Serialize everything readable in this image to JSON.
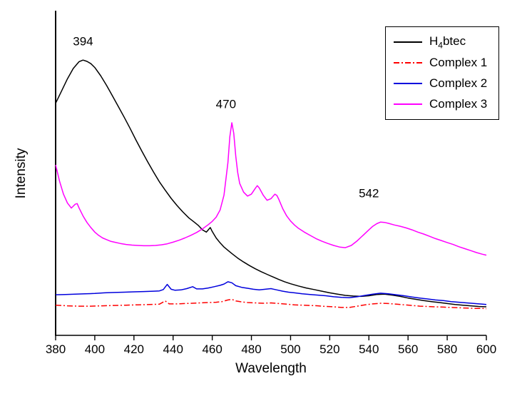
{
  "figure": {
    "background": "#ffffff"
  },
  "chart_data": {
    "type": "line",
    "title": "",
    "xlabel": "Wavelength",
    "ylabel": "Intensity",
    "xlim": [
      380,
      600
    ],
    "ylim": [
      0,
      1
    ],
    "x_ticks": [
      380,
      400,
      420,
      440,
      460,
      480,
      500,
      520,
      540,
      560,
      580,
      600
    ],
    "y_ticks": [],
    "grid": false,
    "legend": {
      "position": "top-right",
      "entries": [
        {
          "label": "H4btec",
          "label_parts": [
            {
              "t": "H"
            },
            {
              "t": "4",
              "sub": true
            },
            {
              "t": "btec"
            }
          ],
          "color": "#000000",
          "dash": "solid",
          "series_id": "h4btec"
        },
        {
          "label": "Complex 1",
          "label_parts": [
            {
              "t": "Complex 1"
            }
          ],
          "color": "#ff0000",
          "dash": "dashdot",
          "series_id": "complex1"
        },
        {
          "label": "Complex 2",
          "label_parts": [
            {
              "t": "Complex 2"
            }
          ],
          "color": "#0000dd",
          "dash": "solid",
          "series_id": "complex2"
        },
        {
          "label": "Complex 3",
          "label_parts": [
            {
              "t": "Complex 3"
            }
          ],
          "color": "#ff00ff",
          "dash": "solid",
          "series_id": "complex3"
        }
      ]
    },
    "annotations": [
      {
        "text": "394",
        "x": 394,
        "y": 0.893
      },
      {
        "text": "470",
        "x": 467,
        "y": 0.7
      },
      {
        "text": "542",
        "x": 540,
        "y": 0.425
      }
    ],
    "series": [
      {
        "id": "h4btec",
        "name": "H4btec",
        "color": "#000000",
        "dash": "solid",
        "peak_label": "394",
        "points": [
          [
            380,
            0.715
          ],
          [
            383,
            0.752
          ],
          [
            386,
            0.79
          ],
          [
            389,
            0.822
          ],
          [
            392,
            0.843
          ],
          [
            394,
            0.848
          ],
          [
            396,
            0.844
          ],
          [
            398,
            0.837
          ],
          [
            400,
            0.825
          ],
          [
            403,
            0.8
          ],
          [
            406,
            0.77
          ],
          [
            409,
            0.738
          ],
          [
            412,
            0.705
          ],
          [
            415,
            0.672
          ],
          [
            418,
            0.638
          ],
          [
            421,
            0.602
          ],
          [
            424,
            0.568
          ],
          [
            427,
            0.535
          ],
          [
            430,
            0.503
          ],
          [
            433,
            0.473
          ],
          [
            436,
            0.447
          ],
          [
            439,
            0.422
          ],
          [
            442,
            0.4
          ],
          [
            445,
            0.38
          ],
          [
            448,
            0.362
          ],
          [
            451,
            0.348
          ],
          [
            453,
            0.338
          ],
          [
            455,
            0.325
          ],
          [
            457,
            0.318
          ],
          [
            459,
            0.332
          ],
          [
            460,
            0.32
          ],
          [
            462,
            0.3
          ],
          [
            464,
            0.285
          ],
          [
            466,
            0.272
          ],
          [
            468,
            0.262
          ],
          [
            470,
            0.252
          ],
          [
            473,
            0.238
          ],
          [
            476,
            0.226
          ],
          [
            479,
            0.215
          ],
          [
            482,
            0.205
          ],
          [
            485,
            0.196
          ],
          [
            488,
            0.188
          ],
          [
            491,
            0.18
          ],
          [
            494,
            0.172
          ],
          [
            497,
            0.165
          ],
          [
            500,
            0.159
          ],
          [
            504,
            0.152
          ],
          [
            508,
            0.146
          ],
          [
            512,
            0.141
          ],
          [
            516,
            0.136
          ],
          [
            520,
            0.131
          ],
          [
            524,
            0.127
          ],
          [
            528,
            0.123
          ],
          [
            532,
            0.121
          ],
          [
            536,
            0.12
          ],
          [
            540,
            0.122
          ],
          [
            544,
            0.126
          ],
          [
            548,
            0.127
          ],
          [
            552,
            0.124
          ],
          [
            556,
            0.12
          ],
          [
            560,
            0.115
          ],
          [
            564,
            0.111
          ],
          [
            568,
            0.107
          ],
          [
            572,
            0.104
          ],
          [
            576,
            0.101
          ],
          [
            580,
            0.098
          ],
          [
            584,
            0.095
          ],
          [
            588,
            0.093
          ],
          [
            592,
            0.091
          ],
          [
            596,
            0.089
          ],
          [
            600,
            0.088
          ]
        ]
      },
      {
        "id": "complex1",
        "name": "Complex 1",
        "color": "#ff0000",
        "dash": "dashdot",
        "peak_label": "",
        "points": [
          [
            380,
            0.093
          ],
          [
            386,
            0.091
          ],
          [
            392,
            0.09
          ],
          [
            398,
            0.09
          ],
          [
            404,
            0.091
          ],
          [
            410,
            0.092
          ],
          [
            416,
            0.093
          ],
          [
            422,
            0.094
          ],
          [
            428,
            0.095
          ],
          [
            433,
            0.096
          ],
          [
            436,
            0.106
          ],
          [
            438,
            0.097
          ],
          [
            442,
            0.097
          ],
          [
            446,
            0.098
          ],
          [
            450,
            0.099
          ],
          [
            454,
            0.1
          ],
          [
            458,
            0.101
          ],
          [
            462,
            0.102
          ],
          [
            465,
            0.104
          ],
          [
            468,
            0.109
          ],
          [
            470,
            0.111
          ],
          [
            472,
            0.106
          ],
          [
            475,
            0.103
          ],
          [
            478,
            0.101
          ],
          [
            482,
            0.1
          ],
          [
            486,
            0.099
          ],
          [
            490,
            0.1
          ],
          [
            494,
            0.098
          ],
          [
            498,
            0.096
          ],
          [
            502,
            0.094
          ],
          [
            506,
            0.093
          ],
          [
            510,
            0.092
          ],
          [
            514,
            0.091
          ],
          [
            518,
            0.089
          ],
          [
            522,
            0.088
          ],
          [
            526,
            0.086
          ],
          [
            530,
            0.086
          ],
          [
            534,
            0.09
          ],
          [
            538,
            0.094
          ],
          [
            542,
            0.097
          ],
          [
            546,
            0.099
          ],
          [
            550,
            0.098
          ],
          [
            554,
            0.096
          ],
          [
            558,
            0.094
          ],
          [
            562,
            0.092
          ],
          [
            566,
            0.09
          ],
          [
            570,
            0.089
          ],
          [
            574,
            0.088
          ],
          [
            578,
            0.087
          ],
          [
            582,
            0.086
          ],
          [
            586,
            0.085
          ],
          [
            590,
            0.084
          ],
          [
            594,
            0.083
          ],
          [
            598,
            0.083
          ],
          [
            600,
            0.082
          ]
        ]
      },
      {
        "id": "complex2",
        "name": "Complex 2",
        "color": "#0000dd",
        "dash": "solid",
        "peak_label": "",
        "points": [
          [
            380,
            0.125
          ],
          [
            385,
            0.126
          ],
          [
            390,
            0.127
          ],
          [
            395,
            0.128
          ],
          [
            400,
            0.129
          ],
          [
            405,
            0.131
          ],
          [
            410,
            0.132
          ],
          [
            415,
            0.133
          ],
          [
            420,
            0.134
          ],
          [
            425,
            0.135
          ],
          [
            430,
            0.136
          ],
          [
            433,
            0.137
          ],
          [
            435,
            0.141
          ],
          [
            437,
            0.157
          ],
          [
            439,
            0.142
          ],
          [
            441,
            0.139
          ],
          [
            444,
            0.14
          ],
          [
            447,
            0.144
          ],
          [
            450,
            0.15
          ],
          [
            452,
            0.143
          ],
          [
            455,
            0.143
          ],
          [
            458,
            0.146
          ],
          [
            461,
            0.15
          ],
          [
            464,
            0.154
          ],
          [
            466,
            0.158
          ],
          [
            468,
            0.165
          ],
          [
            470,
            0.162
          ],
          [
            472,
            0.153
          ],
          [
            475,
            0.148
          ],
          [
            478,
            0.145
          ],
          [
            481,
            0.142
          ],
          [
            484,
            0.14
          ],
          [
            487,
            0.142
          ],
          [
            490,
            0.144
          ],
          [
            493,
            0.14
          ],
          [
            496,
            0.136
          ],
          [
            499,
            0.133
          ],
          [
            502,
            0.131
          ],
          [
            506,
            0.128
          ],
          [
            510,
            0.126
          ],
          [
            514,
            0.124
          ],
          [
            518,
            0.122
          ],
          [
            522,
            0.119
          ],
          [
            526,
            0.117
          ],
          [
            530,
            0.116
          ],
          [
            534,
            0.119
          ],
          [
            538,
            0.123
          ],
          [
            542,
            0.127
          ],
          [
            546,
            0.13
          ],
          [
            550,
            0.128
          ],
          [
            554,
            0.125
          ],
          [
            558,
            0.122
          ],
          [
            562,
            0.118
          ],
          [
            566,
            0.115
          ],
          [
            570,
            0.112
          ],
          [
            574,
            0.109
          ],
          [
            578,
            0.107
          ],
          [
            582,
            0.104
          ],
          [
            586,
            0.102
          ],
          [
            590,
            0.1
          ],
          [
            594,
            0.098
          ],
          [
            598,
            0.096
          ],
          [
            600,
            0.095
          ]
        ]
      },
      {
        "id": "complex3",
        "name": "Complex 3",
        "color": "#ff00ff",
        "dash": "solid",
        "peak_label": "470 / 542",
        "points": [
          [
            380,
            0.525
          ],
          [
            382,
            0.475
          ],
          [
            384,
            0.435
          ],
          [
            386,
            0.408
          ],
          [
            388,
            0.392
          ],
          [
            390,
            0.404
          ],
          [
            391,
            0.406
          ],
          [
            392,
            0.392
          ],
          [
            394,
            0.368
          ],
          [
            396,
            0.348
          ],
          [
            398,
            0.332
          ],
          [
            400,
            0.318
          ],
          [
            402,
            0.308
          ],
          [
            404,
            0.3
          ],
          [
            406,
            0.295
          ],
          [
            408,
            0.29
          ],
          [
            410,
            0.287
          ],
          [
            413,
            0.283
          ],
          [
            416,
            0.28
          ],
          [
            419,
            0.278
          ],
          [
            422,
            0.277
          ],
          [
            425,
            0.276
          ],
          [
            428,
            0.276
          ],
          [
            431,
            0.277
          ],
          [
            434,
            0.279
          ],
          [
            437,
            0.282
          ],
          [
            440,
            0.287
          ],
          [
            443,
            0.293
          ],
          [
            446,
            0.3
          ],
          [
            449,
            0.308
          ],
          [
            452,
            0.317
          ],
          [
            455,
            0.328
          ],
          [
            458,
            0.341
          ],
          [
            460,
            0.351
          ],
          [
            462,
            0.364
          ],
          [
            464,
            0.386
          ],
          [
            466,
            0.432
          ],
          [
            468,
            0.532
          ],
          [
            469,
            0.612
          ],
          [
            470,
            0.655
          ],
          [
            471,
            0.622
          ],
          [
            472,
            0.552
          ],
          [
            473,
            0.502
          ],
          [
            474,
            0.468
          ],
          [
            476,
            0.441
          ],
          [
            478,
            0.429
          ],
          [
            480,
            0.435
          ],
          [
            482,
            0.453
          ],
          [
            483,
            0.461
          ],
          [
            484,
            0.454
          ],
          [
            486,
            0.432
          ],
          [
            488,
            0.416
          ],
          [
            490,
            0.421
          ],
          [
            492,
            0.435
          ],
          [
            493,
            0.431
          ],
          [
            494,
            0.419
          ],
          [
            496,
            0.39
          ],
          [
            498,
            0.368
          ],
          [
            500,
            0.352
          ],
          [
            502,
            0.34
          ],
          [
            504,
            0.33
          ],
          [
            507,
            0.318
          ],
          [
            510,
            0.308
          ],
          [
            513,
            0.298
          ],
          [
            516,
            0.29
          ],
          [
            519,
            0.283
          ],
          [
            522,
            0.277
          ],
          [
            525,
            0.272
          ],
          [
            528,
            0.27
          ],
          [
            531,
            0.277
          ],
          [
            534,
            0.291
          ],
          [
            537,
            0.308
          ],
          [
            540,
            0.325
          ],
          [
            542,
            0.336
          ],
          [
            544,
            0.344
          ],
          [
            546,
            0.349
          ],
          [
            548,
            0.348
          ],
          [
            550,
            0.345
          ],
          [
            553,
            0.34
          ],
          [
            556,
            0.336
          ],
          [
            559,
            0.331
          ],
          [
            562,
            0.325
          ],
          [
            565,
            0.318
          ],
          [
            568,
            0.312
          ],
          [
            571,
            0.305
          ],
          [
            574,
            0.298
          ],
          [
            577,
            0.292
          ],
          [
            580,
            0.286
          ],
          [
            583,
            0.28
          ],
          [
            586,
            0.273
          ],
          [
            589,
            0.267
          ],
          [
            592,
            0.261
          ],
          [
            595,
            0.255
          ],
          [
            598,
            0.25
          ],
          [
            600,
            0.247
          ]
        ]
      }
    ]
  }
}
